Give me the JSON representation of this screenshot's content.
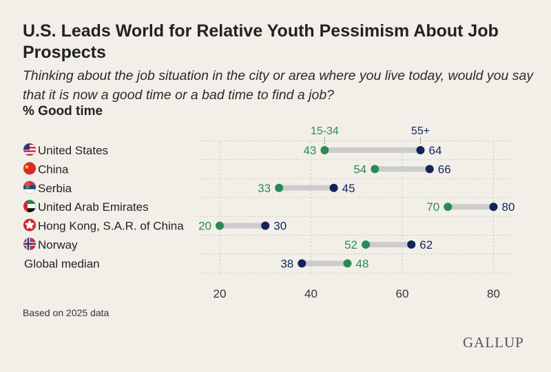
{
  "title": "U.S. Leads World for Relative Youth Pessimism About Job Prospects",
  "subtitle": "Thinking about the job situation in the city or area where you live today, would you say that it is now a good time or a bad time to find a job?",
  "measure_label": "% Good time",
  "footnote": "Based on 2025 data",
  "logo": "GALLUP",
  "colors": {
    "young": "#2a8a55",
    "old": "#12235e",
    "connector": "#cccccc",
    "grid": "#b9b9b2"
  },
  "chart_data": {
    "type": "dumbbell",
    "categories": [
      "United States",
      "China",
      "Serbia",
      "United Arab Emirates",
      "Hong Kong, S.A.R. of China",
      "Norway",
      "Global median"
    ],
    "flags": [
      "us-flag-icon",
      "china-flag-icon",
      "serbia-flag-icon",
      "uae-flag-icon",
      "hong-kong-flag-icon",
      "norway-flag-icon",
      ""
    ],
    "series": [
      {
        "name": "15-34",
        "color": "#2a8a55",
        "values": [
          43,
          54,
          33,
          70,
          20,
          52,
          48
        ]
      },
      {
        "name": "55+",
        "color": "#12235e",
        "values": [
          64,
          66,
          45,
          80,
          30,
          62,
          38
        ]
      }
    ],
    "x_ticks": [
      20,
      40,
      60,
      80
    ],
    "xlim": [
      15,
      85
    ],
    "grid": "vertical dashed",
    "legend": "series labels above the first row"
  }
}
